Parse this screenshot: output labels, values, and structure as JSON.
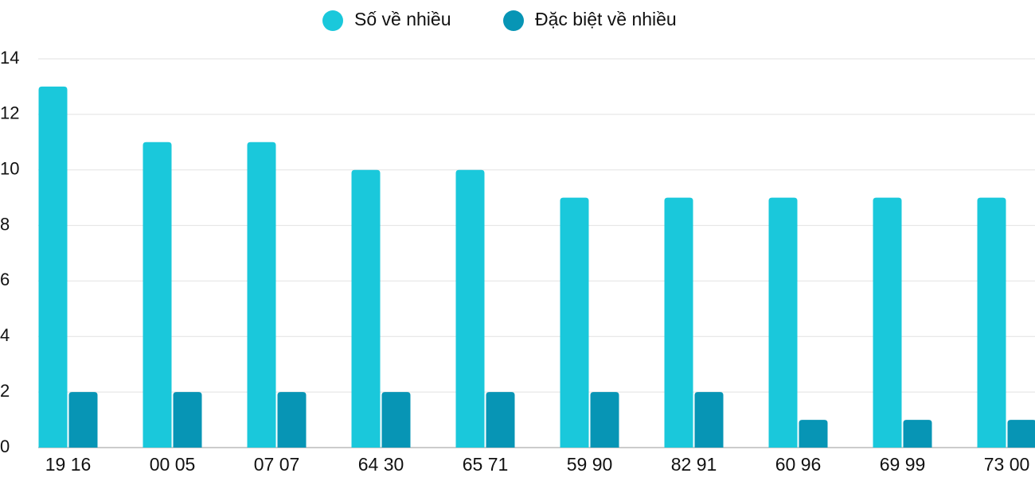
{
  "chart_data": {
    "type": "bar",
    "categories": [
      "19 16",
      "00 05",
      "07 07",
      "64 30",
      "65 71",
      "59 90",
      "82 91",
      "60 96",
      "69 99",
      "73 00"
    ],
    "series": [
      {
        "name": "Số về nhiều",
        "color": "#1ac8db",
        "values": [
          13,
          11,
          11,
          10,
          10,
          9,
          9,
          9,
          9,
          9
        ]
      },
      {
        "name": "Đặc biệt về nhiều",
        "color": "#0795b5",
        "values": [
          2,
          2,
          2,
          2,
          2,
          2,
          2,
          1,
          1,
          1
        ]
      }
    ],
    "ylim": [
      0,
      14
    ],
    "yticks": [
      0,
      2,
      4,
      6,
      8,
      10,
      12,
      14
    ],
    "grid": true,
    "legend": "top"
  }
}
